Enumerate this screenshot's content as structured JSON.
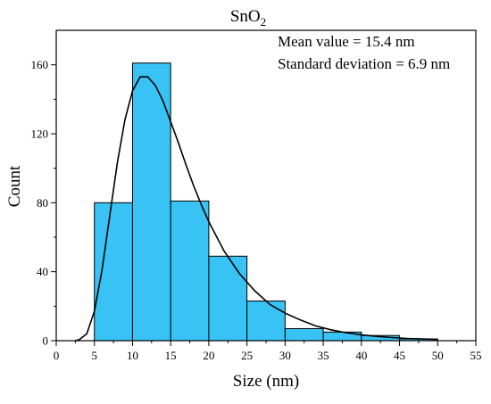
{
  "chart_data": {
    "type": "bar",
    "title_base": "SnO",
    "title_sub": "2",
    "xlabel": "Size (nm)",
    "ylabel": "Count",
    "xlim": [
      0,
      55
    ],
    "ylim": [
      0,
      180
    ],
    "x_ticks": [
      0,
      5,
      10,
      15,
      20,
      25,
      30,
      35,
      40,
      45,
      50,
      55
    ],
    "y_ticks": [
      0,
      40,
      80,
      120,
      160
    ],
    "bins": [
      {
        "start": 5,
        "end": 10,
        "value": 80
      },
      {
        "start": 10,
        "end": 15,
        "value": 161
      },
      {
        "start": 15,
        "end": 20,
        "value": 81
      },
      {
        "start": 20,
        "end": 25,
        "value": 49
      },
      {
        "start": 25,
        "end": 30,
        "value": 23
      },
      {
        "start": 30,
        "end": 35,
        "value": 7
      },
      {
        "start": 35,
        "end": 40,
        "value": 5
      },
      {
        "start": 40,
        "end": 45,
        "value": 3
      },
      {
        "start": 45,
        "end": 50,
        "value": 1
      }
    ],
    "fit_curve": {
      "type": "lognormal",
      "x": [
        2.5,
        3,
        4,
        5,
        6,
        7,
        8,
        9,
        10,
        11,
        12,
        13,
        14,
        15,
        16,
        17,
        18,
        19,
        20,
        22,
        24,
        26,
        28,
        30,
        32,
        34,
        36,
        38,
        40,
        42,
        44,
        46,
        48,
        50
      ],
      "y": [
        0.1,
        0.5,
        4,
        17,
        41,
        72,
        103,
        128,
        145,
        153,
        153,
        148,
        139,
        127,
        115,
        102,
        90,
        79,
        69,
        52,
        39,
        29,
        21,
        16,
        12,
        8.6,
        6.3,
        4.6,
        3.4,
        2.5,
        1.8,
        1.3,
        1.0,
        0.7
      ]
    },
    "annotations": [
      "Mean value = 15.4 nm",
      "Standard deviation = 6.9 nm"
    ],
    "bar_color": "#38c3f4",
    "bar_edge_color": "#000000",
    "curve_color": "#000000",
    "grid": false,
    "legend": "none"
  }
}
